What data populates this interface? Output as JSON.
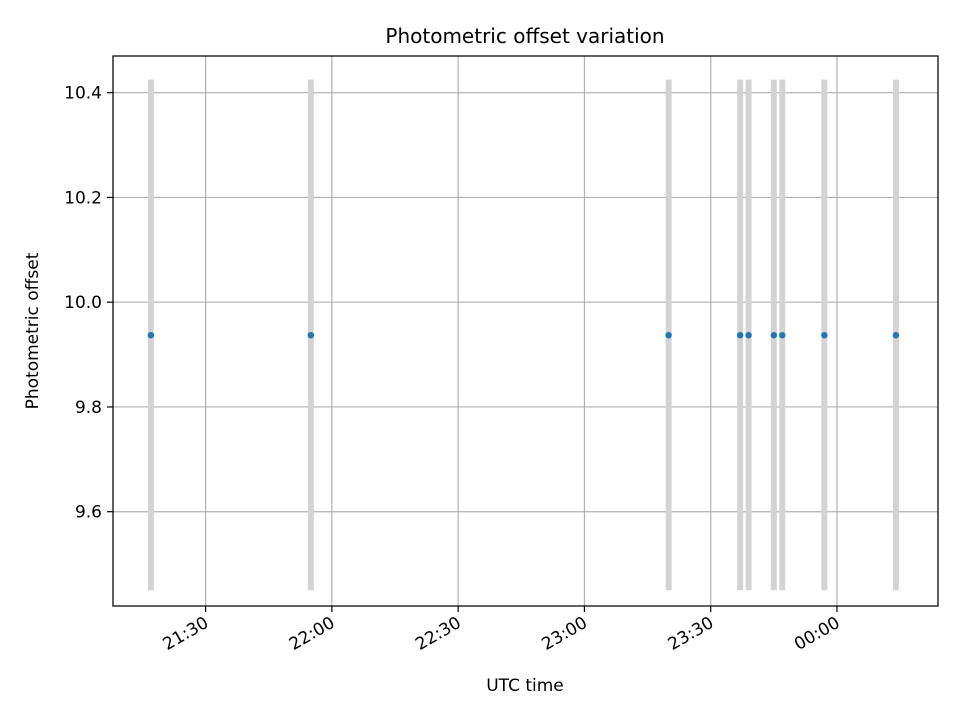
{
  "chart_data": {
    "type": "scatter",
    "title": "Photometric offset variation",
    "xlabel": "UTC time",
    "ylabel": "Photometric offset",
    "x_tick_labels": [
      "21:30",
      "22:00",
      "22:30",
      "23:00",
      "23:30",
      "00:00"
    ],
    "x_tick_times": [
      "21:30",
      "22:00",
      "22:30",
      "23:00",
      "23:30",
      "00:00"
    ],
    "y_ticks": [
      9.6,
      9.8,
      10.0,
      10.2,
      10.4
    ],
    "y_tick_labels": [
      "9.6",
      "9.8",
      "10.0",
      "10.2",
      "10.4"
    ],
    "xlim": [
      "21:08",
      "00:24"
    ],
    "ylim": [
      9.42,
      10.47
    ],
    "grid": true,
    "colors": {
      "point": "#1f77b4",
      "errorbar": "#d3d3d3",
      "grid": "#b0b0b0",
      "axes": "#000000"
    },
    "points": [
      {
        "time": "21:17",
        "y": 9.937,
        "ylo": 9.45,
        "yhi": 10.425
      },
      {
        "time": "21:55",
        "y": 9.937,
        "ylo": 9.45,
        "yhi": 10.425
      },
      {
        "time": "23:20",
        "y": 9.937,
        "ylo": 9.45,
        "yhi": 10.425
      },
      {
        "time": "23:37",
        "y": 9.937,
        "ylo": 9.45,
        "yhi": 10.425
      },
      {
        "time": "23:39",
        "y": 9.937,
        "ylo": 9.45,
        "yhi": 10.425
      },
      {
        "time": "23:45",
        "y": 9.937,
        "ylo": 9.45,
        "yhi": 10.425
      },
      {
        "time": "23:47",
        "y": 9.937,
        "ylo": 9.45,
        "yhi": 10.425
      },
      {
        "time": "23:57",
        "y": 9.937,
        "ylo": 9.45,
        "yhi": 10.425
      },
      {
        "time": "00:14",
        "y": 9.937,
        "ylo": 9.45,
        "yhi": 10.425
      }
    ]
  }
}
